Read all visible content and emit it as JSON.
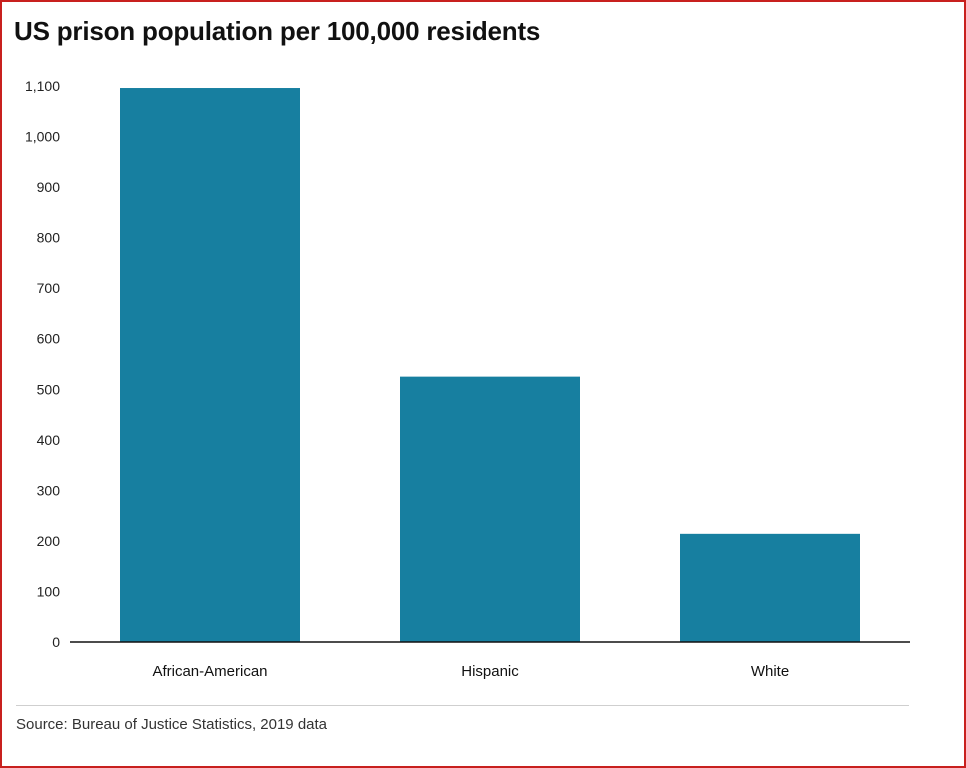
{
  "chart_data": {
    "type": "bar",
    "title": "US prison population per 100,000 residents",
    "categories": [
      "African-American",
      "Hispanic",
      "White"
    ],
    "values": [
      1096,
      525,
      214
    ],
    "ylim": [
      0,
      1100
    ],
    "yticks": [
      0,
      100,
      200,
      300,
      400,
      500,
      600,
      700,
      800,
      900,
      1000,
      1100
    ],
    "ytick_labels": [
      "0",
      "100",
      "200",
      "300",
      "400",
      "500",
      "600",
      "700",
      "800",
      "900",
      "1,000",
      "1,100"
    ],
    "xlabel": "",
    "ylabel": "",
    "grid": false,
    "legend": "none",
    "bar_color": "#177fa0",
    "source": "Source: Bureau of Justice Statistics, 2019 data"
  }
}
